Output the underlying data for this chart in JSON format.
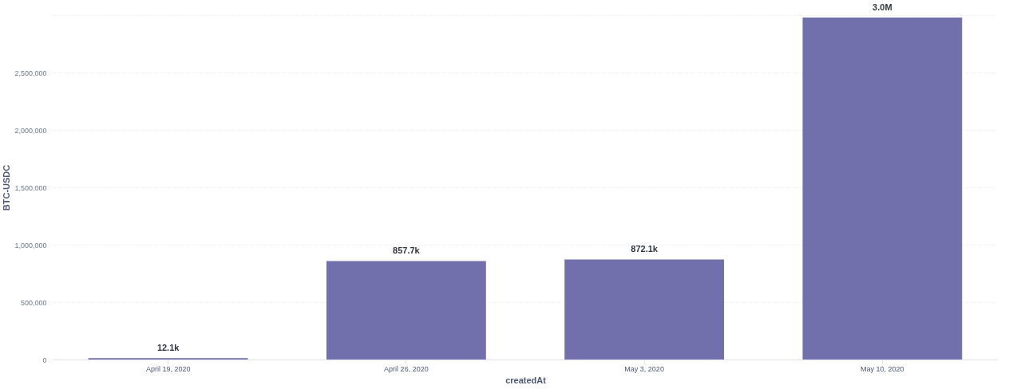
{
  "chart_data": {
    "type": "bar",
    "xlabel": "createdAt",
    "ylabel": "BTC-USDC",
    "categories": [
      "April 19, 2020",
      "April 26, 2020",
      "May 3, 2020",
      "May 10, 2020"
    ],
    "values": [
      12100,
      857700,
      872100,
      2980000
    ],
    "value_labels": [
      "12.1k",
      "857.7k",
      "872.1k",
      "3.0M"
    ],
    "color": "#7170ad",
    "ylim": [
      0,
      3000000
    ],
    "yticks": [
      {
        "value": 0,
        "label": "0"
      },
      {
        "value": 500000,
        "label": "500,000"
      },
      {
        "value": 1000000,
        "label": "1,000,000"
      },
      {
        "value": 1500000,
        "label": "1,500,000"
      },
      {
        "value": 2000000,
        "label": "2,000,000"
      },
      {
        "value": 2500000,
        "label": "2,500,000"
      },
      {
        "value": 3000000,
        "label": null
      }
    ],
    "grid": "y"
  }
}
